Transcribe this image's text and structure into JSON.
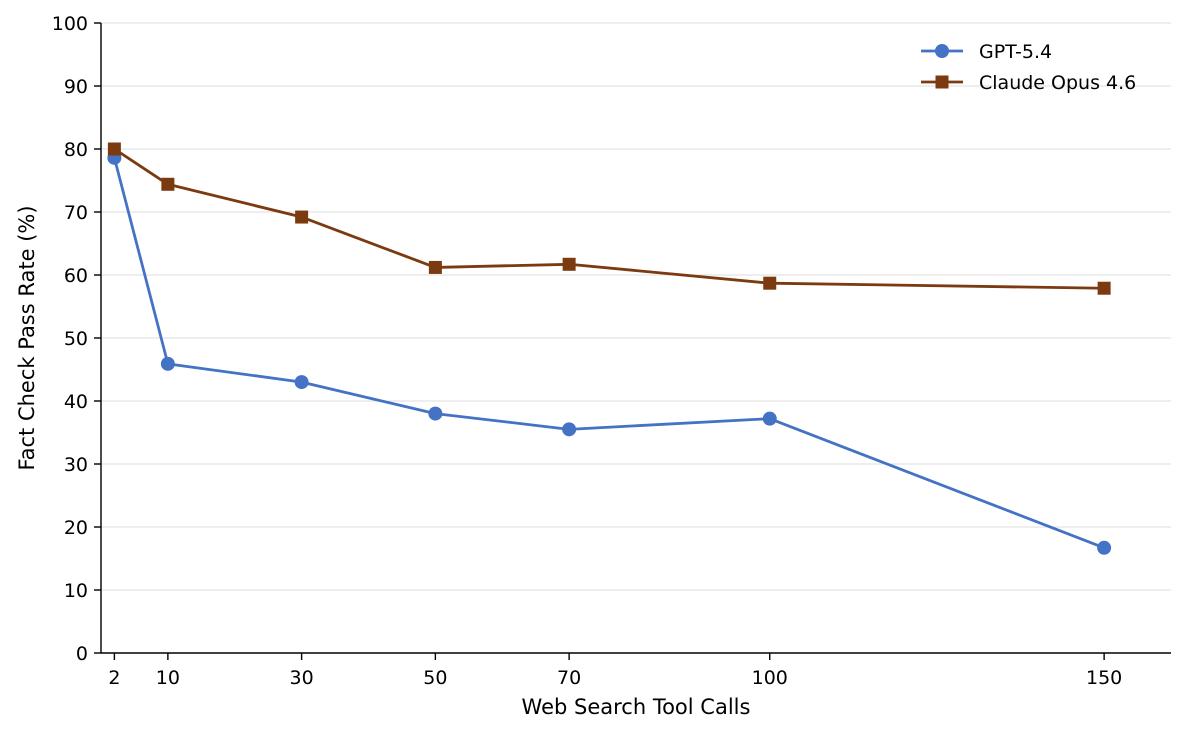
{
  "chart_data": {
    "type": "line",
    "title": "",
    "xlabel": "Web Search Tool Calls",
    "ylabel": "Fact Check Pass Rate (%)",
    "x": [
      2,
      10,
      30,
      50,
      70,
      100,
      150
    ],
    "x_ticks": [
      2,
      10,
      30,
      50,
      70,
      100,
      150
    ],
    "y_ticks": [
      0,
      10,
      20,
      30,
      40,
      50,
      60,
      70,
      80,
      90,
      100
    ],
    "xlim": [
      0,
      160
    ],
    "ylim": [
      0,
      100
    ],
    "grid": "horizontal",
    "legend": "top-right",
    "series": [
      {
        "name": "GPT-5.4",
        "color": "#4472c4",
        "marker": "circle",
        "values": [
          78.6,
          45.9,
          43.0,
          38.0,
          35.5,
          37.2,
          16.7
        ]
      },
      {
        "name": "Claude Opus 4.6",
        "color": "#7b3a10",
        "marker": "square",
        "values": [
          80.0,
          74.4,
          69.2,
          61.2,
          61.7,
          58.7,
          57.9
        ]
      }
    ]
  }
}
